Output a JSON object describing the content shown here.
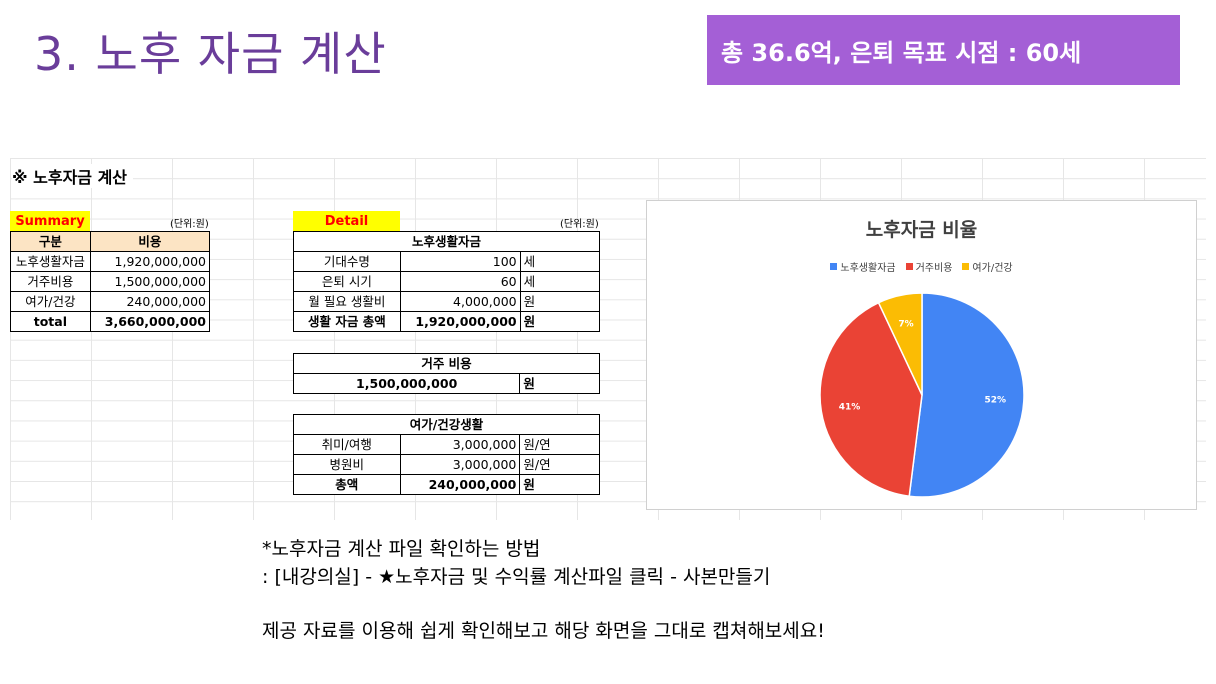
{
  "slide": {
    "title": "3. 노후 자금 계산",
    "banner": "총 36.6억, 은퇴 목표 시점  : 60세"
  },
  "sheet": {
    "heading": "※ 노후자금 계산",
    "summary": {
      "tag": "Summary",
      "unit": "(단위:원)",
      "headers": [
        "구분",
        "비용"
      ],
      "rows": [
        {
          "label": "노후생활자금",
          "value": "1,920,000,000"
        },
        {
          "label": "거주비용",
          "value": "1,500,000,000"
        },
        {
          "label": "여가/건강",
          "value": "240,000,000"
        }
      ],
      "total": {
        "label": "total",
        "value": "3,660,000,000"
      }
    },
    "detail": {
      "tag": "Detail",
      "unit": "(단위:원)",
      "living": {
        "title": "노후생활자금",
        "rows": [
          {
            "label": "기대수명",
            "value": "100",
            "unit": "세"
          },
          {
            "label": "은퇴 시기",
            "value": "60",
            "unit": "세"
          },
          {
            "label": "월 필요 생활비",
            "value": "4,000,000",
            "unit": "원"
          }
        ],
        "total": {
          "label": "생활 자금 총액",
          "value": "1,920,000,000",
          "unit": "원"
        }
      },
      "housing": {
        "title": "거주 비용",
        "value": "1,500,000,000",
        "unit": "원"
      },
      "leisure": {
        "title": "여가/건강생활",
        "rows": [
          {
            "label": "취미/여행",
            "value": "3,000,000",
            "unit": "원/연"
          },
          {
            "label": "병원비",
            "value": "3,000,000",
            "unit": "원/연"
          }
        ],
        "total": {
          "label": "총액",
          "value": "240,000,000",
          "unit": "원"
        }
      }
    }
  },
  "chart_data": {
    "type": "pie",
    "title": "노후자금 비율",
    "legend_position": "top",
    "categories": [
      "노후생활자금",
      "거주비용",
      "여가/건강"
    ],
    "values": [
      52,
      41,
      7
    ],
    "labels": [
      "52%",
      "41%",
      "7%"
    ],
    "colors": [
      "#4285f4",
      "#ea4335",
      "#fbbc04"
    ]
  },
  "notes": {
    "line1": "*노후자금 계산 파일 확인하는 방법",
    "line2": ": [내강의실] - ★노후자금 및 수익률 계산파일 클릭 - 사본만들기",
    "line3": "제공 자료를 이용해 쉽게 확인해보고 해당 화면을 그대로 캡쳐해보세요!"
  }
}
